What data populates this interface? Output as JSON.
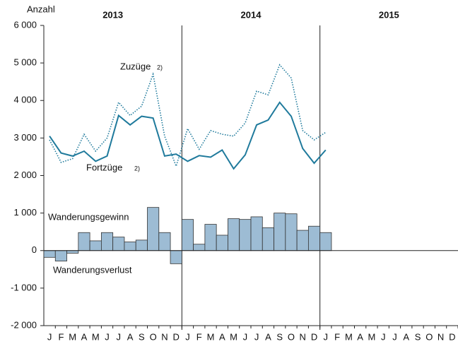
{
  "chart_data": {
    "type": "combo",
    "y_label": "Anzahl",
    "categories": [
      "J",
      "F",
      "M",
      "A",
      "M",
      "J",
      "J",
      "A",
      "S",
      "O",
      "N",
      "D",
      "J",
      "F",
      "M",
      "A",
      "M",
      "J",
      "J",
      "A",
      "S",
      "O",
      "N",
      "D",
      "J",
      "F",
      "M",
      "A",
      "M",
      "J",
      "J",
      "A",
      "S",
      "O",
      "N",
      "D"
    ],
    "year_groups": [
      "2013",
      "2014",
      "2015"
    ],
    "ylim": [
      -2000,
      6000
    ],
    "yticks": [
      {
        "value": -2000,
        "label": "-2 000"
      },
      {
        "value": -1000,
        "label": "-1 000"
      },
      0,
      {
        "value": 1000,
        "label": "1 000"
      },
      {
        "value": 2000,
        "label": "2 000"
      },
      {
        "value": 3000,
        "label": "3 000"
      },
      {
        "value": 4000,
        "label": "4 000"
      },
      {
        "value": 5000,
        "label": "5 000"
      },
      {
        "value": 6000,
        "label": "6 000"
      }
    ],
    "series": [
      {
        "name": "Wanderungsgewinn",
        "name_negative": "Wanderungsverlust",
        "type": "bar",
        "color": "#9dbcd4",
        "values": [
          -180,
          -280,
          -70,
          480,
          260,
          480,
          360,
          230,
          280,
          1150,
          480,
          -350,
          830,
          170,
          700,
          410,
          850,
          830,
          900,
          610,
          1000,
          980,
          540,
          650,
          480,
          null,
          null,
          null,
          null,
          null,
          null,
          null,
          null,
          null,
          null,
          null
        ]
      },
      {
        "name": "Zuzüge",
        "note": "2)",
        "type": "line",
        "style": "dotted",
        "color": "#1f7a9c",
        "values": [
          2950,
          2350,
          2450,
          3100,
          2650,
          3000,
          3950,
          3600,
          3850,
          4700,
          3050,
          2250,
          3250,
          2700,
          3200,
          3100,
          3050,
          3400,
          4250,
          4150,
          4950,
          4600,
          3200,
          2950,
          3150,
          null,
          null,
          null,
          null,
          null,
          null,
          null,
          null,
          null,
          null,
          null
        ]
      },
      {
        "name": "Fortzüge",
        "note": "2)",
        "type": "line",
        "style": "solid",
        "color": "#1f7a9c",
        "values": [
          3050,
          2600,
          2520,
          2650,
          2380,
          2520,
          3600,
          3350,
          3580,
          3530,
          2520,
          2570,
          2380,
          2530,
          2490,
          2680,
          2180,
          2550,
          3350,
          3480,
          3950,
          3580,
          2720,
          2330,
          2680,
          null,
          null,
          null,
          null,
          null,
          null,
          null,
          null,
          null,
          null,
          null
        ]
      }
    ]
  }
}
